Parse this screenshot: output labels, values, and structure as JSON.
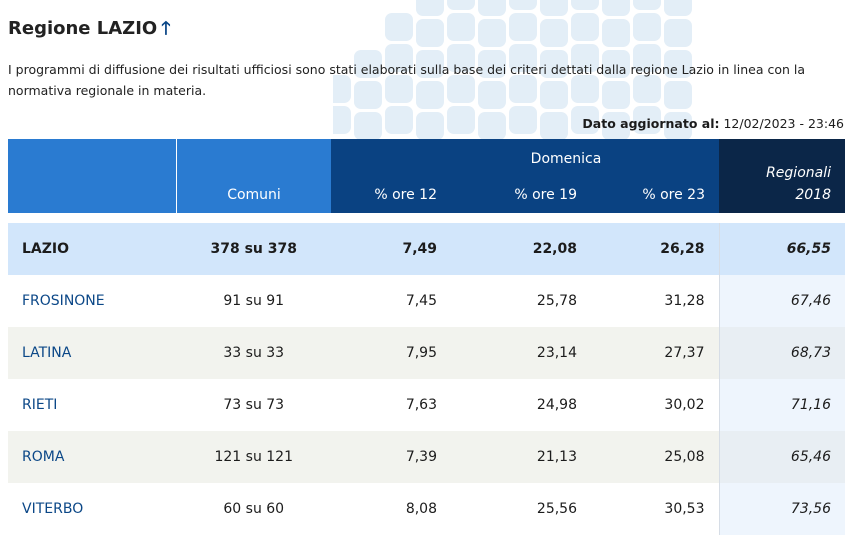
{
  "title": "Regione LAZIO",
  "description": "I programmi di diffusione dei risultati ufficiosi sono stati elaborati sulla base dei criteri dettati dalla regione Lazio in linea con la normativa regionale in materia.",
  "updated": {
    "label": "Dato aggiornato al:",
    "value": "12/02/2023 - 23:46"
  },
  "headers": {
    "comuni": "Comuni",
    "group": "Domenica",
    "ore12": "% ore 12",
    "ore19": "% ore 19",
    "ore23": "% ore 23",
    "regionali": "Regionali",
    "year": "2018"
  },
  "total": {
    "name": "LAZIO",
    "comuni": "378 su 378",
    "ore12": "7,49",
    "ore19": "22,08",
    "ore23": "26,28",
    "reg": "66,55"
  },
  "rows": [
    {
      "name": "FROSINONE",
      "comuni": "91 su 91",
      "ore12": "7,45",
      "ore19": "25,78",
      "ore23": "31,28",
      "reg": "67,46"
    },
    {
      "name": "LATINA",
      "comuni": "33 su 33",
      "ore12": "7,95",
      "ore19": "23,14",
      "ore23": "27,37",
      "reg": "68,73"
    },
    {
      "name": "RIETI",
      "comuni": "73 su 73",
      "ore12": "7,63",
      "ore19": "24,98",
      "ore23": "30,02",
      "reg": "71,16"
    },
    {
      "name": "ROMA",
      "comuni": "121 su 121",
      "ore12": "7,39",
      "ore19": "21,13",
      "ore23": "25,08",
      "reg": "65,46"
    },
    {
      "name": "VITERBO",
      "comuni": "60 su 60",
      "ore12": "8,08",
      "ore19": "25,56",
      "ore23": "30,53",
      "reg": "73,56"
    }
  ]
}
